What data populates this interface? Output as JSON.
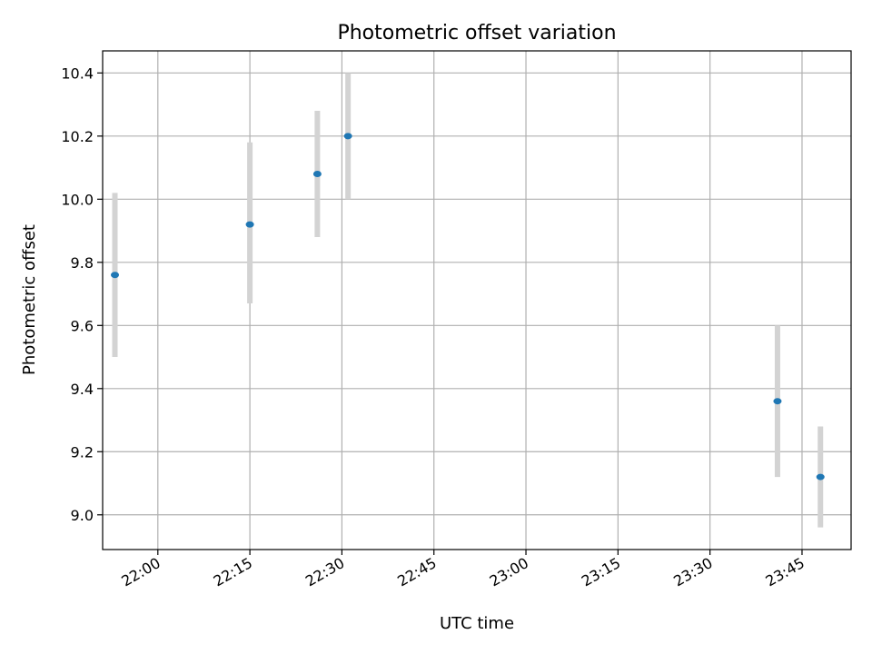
{
  "chart_data": {
    "type": "scatter",
    "title": "Photometric offset variation",
    "xlabel": "UTC time",
    "ylabel": "Photometric offset",
    "x_ticks": [
      "22:00",
      "22:15",
      "22:30",
      "22:45",
      "23:00",
      "23:15",
      "23:30",
      "23:45"
    ],
    "y_ticks": [
      "9.0",
      "9.2",
      "9.4",
      "9.6",
      "9.8",
      "10.0",
      "10.2",
      "10.4"
    ],
    "xlim": [
      "21:51",
      "23:53"
    ],
    "ylim": [
      8.89,
      10.47
    ],
    "grid": true,
    "points": [
      {
        "time": "21:53",
        "y": 9.76,
        "err_low": 9.5,
        "err_high": 10.02
      },
      {
        "time": "22:15",
        "y": 9.92,
        "err_low": 9.67,
        "err_high": 10.18
      },
      {
        "time": "22:26",
        "y": 10.08,
        "err_low": 9.88,
        "err_high": 10.28
      },
      {
        "time": "22:31",
        "y": 10.2,
        "err_low": 10.0,
        "err_high": 10.4
      },
      {
        "time": "23:41",
        "y": 9.36,
        "err_low": 9.12,
        "err_high": 9.6
      },
      {
        "time": "23:48",
        "y": 9.12,
        "err_low": 8.96,
        "err_high": 9.28
      }
    ],
    "colors": {
      "point": "#1f77b4",
      "errorbar": "#d3d3d3",
      "grid": "#b0b0b0"
    }
  }
}
